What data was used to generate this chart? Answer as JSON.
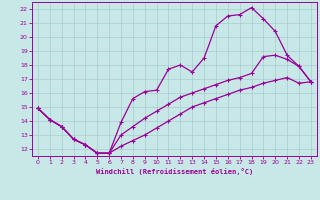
{
  "xlabel": "Windchill (Refroidissement éolien,°C)",
  "xlim": [
    -0.5,
    23.5
  ],
  "ylim": [
    11.5,
    22.5
  ],
  "xticks": [
    0,
    1,
    2,
    3,
    4,
    5,
    6,
    7,
    8,
    9,
    10,
    11,
    12,
    13,
    14,
    15,
    16,
    17,
    18,
    19,
    20,
    21,
    22,
    23
  ],
  "yticks": [
    12,
    13,
    14,
    15,
    16,
    17,
    18,
    19,
    20,
    21,
    22
  ],
  "bg_color": "#c8e8e8",
  "grid_color": "#a8cccc",
  "line_color": "#990099",
  "line1_x": [
    0,
    1,
    2,
    3,
    4,
    5,
    6,
    7,
    8,
    9,
    10,
    11,
    12,
    13,
    14,
    15,
    16,
    17,
    18,
    19,
    20,
    21,
    22,
    23
  ],
  "line1_y": [
    14.9,
    14.1,
    13.6,
    12.7,
    12.3,
    11.7,
    11.7,
    13.9,
    15.6,
    16.1,
    16.2,
    17.7,
    18.0,
    17.5,
    18.5,
    20.8,
    21.5,
    21.6,
    22.1,
    21.3,
    20.4,
    18.7,
    17.9,
    16.8
  ],
  "line2_x": [
    0,
    1,
    2,
    3,
    4,
    5,
    6,
    7,
    8,
    9,
    10,
    11,
    12,
    13,
    14,
    15,
    16,
    17,
    18,
    19,
    20,
    21,
    22,
    23
  ],
  "line2_y": [
    14.9,
    14.1,
    13.6,
    12.7,
    12.3,
    11.7,
    11.7,
    13.0,
    13.6,
    14.2,
    14.7,
    15.2,
    15.7,
    16.0,
    16.3,
    16.6,
    16.9,
    17.1,
    17.4,
    18.6,
    18.7,
    18.4,
    17.9,
    16.8
  ],
  "line3_x": [
    0,
    1,
    2,
    3,
    4,
    5,
    6,
    7,
    8,
    9,
    10,
    11,
    12,
    13,
    14,
    15,
    16,
    17,
    18,
    19,
    20,
    21,
    22,
    23
  ],
  "line3_y": [
    14.9,
    14.1,
    13.6,
    12.7,
    12.3,
    11.7,
    11.7,
    12.2,
    12.6,
    13.0,
    13.5,
    14.0,
    14.5,
    15.0,
    15.3,
    15.6,
    15.9,
    16.2,
    16.4,
    16.7,
    16.9,
    17.1,
    16.7,
    16.8
  ]
}
